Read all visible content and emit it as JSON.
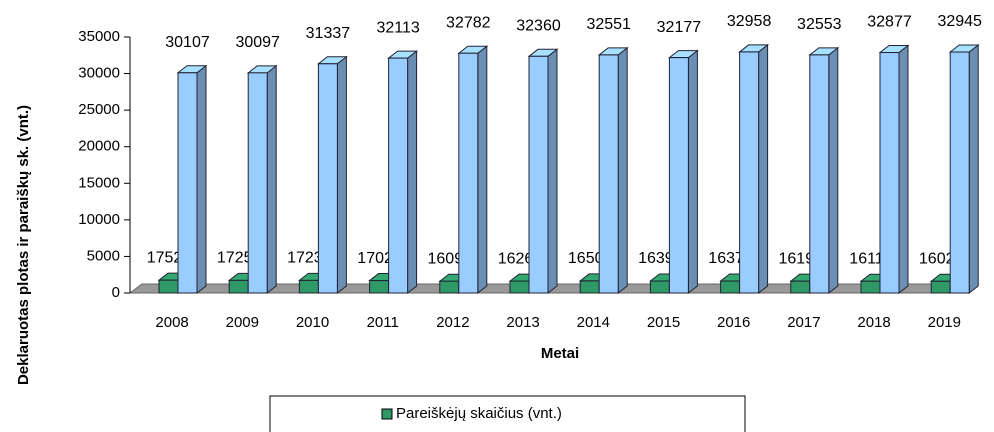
{
  "chart_data": {
    "type": "bar3d",
    "x_label": "Metai",
    "y_label": "Deklaruotas plotas ir paraiškų sk. (vnt.)",
    "categories": [
      "2008",
      "2009",
      "2010",
      "2011",
      "2012",
      "2013",
      "2014",
      "2015",
      "2016",
      "2017",
      "2018",
      "2019"
    ],
    "series": [
      {
        "name": "Pareiškėjų skaičius (vnt.)",
        "color": "#2e9966",
        "values": [
          1752,
          1725,
          1723,
          1702,
          1609,
          1626,
          1650,
          1639,
          1637,
          1619,
          1611,
          1602
        ]
      },
      {
        "color": "#99ccff",
        "values": [
          30107,
          30097,
          31337,
          32113,
          32782,
          32360,
          32551,
          32177,
          32958,
          32553,
          32877,
          32945
        ]
      }
    ],
    "ylim": [
      0,
      35000
    ],
    "yticks": [
      0,
      5000,
      10000,
      15000,
      20000,
      25000,
      30000,
      35000
    ],
    "legend": "bottom"
  }
}
